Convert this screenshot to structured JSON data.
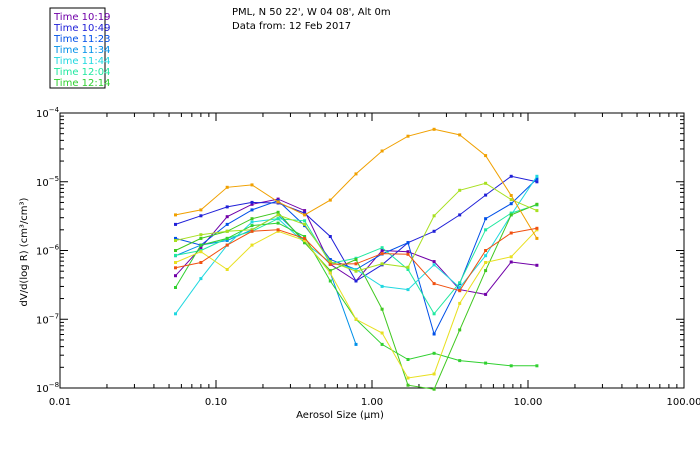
{
  "chart_data": {
    "type": "line",
    "header": {
      "title_line": "PML, N 50 22', W 04 08', Alt 0m",
      "date_line": "Data from: 12 Feb 2017"
    },
    "xlabel": "Aerosol Size (μm)",
    "ylabel": "dV/d(log R) (cm³/cm³)",
    "x_scale": "log",
    "y_scale": "log",
    "xlim": [
      0.01,
      100
    ],
    "ylim": [
      1e-08,
      0.0001
    ],
    "x_ticks": [
      {
        "value": 0.01,
        "label": "0.01"
      },
      {
        "value": 0.1,
        "label": "0.10"
      },
      {
        "value": 1,
        "label": "1.00"
      },
      {
        "value": 10,
        "label": "10.00"
      },
      {
        "value": 100,
        "label": "100.00"
      }
    ],
    "y_ticks": [
      {
        "value": 1e-08,
        "base": "10",
        "exp": "−8"
      },
      {
        "value": 1e-07,
        "base": "10",
        "exp": "−7"
      },
      {
        "value": 1e-06,
        "base": "10",
        "exp": "−6"
      },
      {
        "value": 1e-05,
        "base": "10",
        "exp": "−5"
      },
      {
        "value": 0.0001,
        "base": "10",
        "exp": "−4"
      }
    ],
    "x": [
      0.055,
      0.08,
      0.118,
      0.17,
      0.25,
      0.37,
      0.54,
      0.79,
      1.16,
      1.7,
      2.5,
      3.65,
      5.35,
      7.8,
      11.4
    ],
    "series": [
      {
        "name": "Time 10:19",
        "color": "#7000a8",
        "values": [
          4.3e-07,
          1.1e-06,
          3.1e-06,
          4.7e-06,
          5.6e-06,
          3.8e-06,
          6.3e-07,
          3.6e-07,
          1e-06,
          9.6e-07,
          6.9e-07,
          2.7e-07,
          2.3e-07,
          6.8e-07,
          6.1e-07
        ]
      },
      {
        "name": "Time 10:49",
        "color": "#2020d8",
        "values": [
          2.4e-06,
          3.2e-06,
          4.3e-06,
          5e-06,
          4.9e-06,
          3.5e-06,
          1.6e-06,
          3.6e-07,
          6.2e-07,
          1.3e-06,
          1.9e-06,
          3.3e-06,
          6.4e-06,
          1.2e-05,
          1e-05
        ]
      },
      {
        "name": "Time 11:23",
        "color": "#0050e8",
        "values": [
          1.5e-06,
          1.2e-06,
          2.4e-06,
          3.9e-06,
          5.3e-06,
          2.3e-06,
          7.4e-07,
          5.3e-07,
          8.9e-07,
          1.3e-06,
          6.1e-08,
          3.3e-07,
          2.9e-06,
          4.8e-06,
          1.1e-05
        ]
      },
      {
        "name": "Time 11:34",
        "color": "#0090e8",
        "values": [
          8.4e-07,
          1.2e-06,
          1.4e-06,
          2e-06,
          3.3e-06,
          1.4e-06,
          4.7e-07,
          4.3e-08,
          null,
          null,
          null,
          null,
          null,
          null,
          null
        ]
      },
      {
        "name": "Time 11:44",
        "color": "#20d8e0",
        "values": [
          1.2e-07,
          3.9e-07,
          1.2e-06,
          2.6e-06,
          2.9e-06,
          1.3e-06,
          6.7e-07,
          5.3e-07,
          3e-07,
          2.7e-07,
          6.2e-07,
          2.9e-07,
          8.4e-07,
          3.3e-06,
          1.2e-05
        ]
      },
      {
        "name": "Time 12:04",
        "color": "#20e8a0",
        "values": [
          8.5e-07,
          1e-06,
          1.5e-06,
          1.9e-06,
          2.9e-06,
          2.7e-06,
          6.5e-07,
          7.7e-07,
          1.1e-06,
          5.3e-07,
          1.2e-07,
          3.4e-07,
          2e-06,
          3.5e-06,
          4.6e-06
        ]
      },
      {
        "name": "Time 12:14",
        "color": "#30d030",
        "values": [
          2.9e-07,
          1.2e-06,
          1.5e-06,
          2.3e-06,
          2.5e-06,
          1.6e-06,
          3.6e-07,
          1e-07,
          4.3e-08,
          2.6e-08,
          3.2e-08,
          2.5e-08,
          2.3e-08,
          2.1e-08,
          2.1e-08
        ]
      },
      {
        "name": "",
        "color": "#40c820",
        "values": [
          1e-06,
          1.5e-06,
          1.9e-06,
          2.9e-06,
          3.6e-06,
          1.3e-06,
          5.1e-07,
          7.4e-07,
          1.4e-07,
          1.1e-08,
          9.6e-09,
          7e-08,
          5.1e-07,
          3.3e-06,
          4.7e-06
        ]
      },
      {
        "name": "",
        "color": "#a8e020",
        "values": [
          1.4e-06,
          1.7e-06,
          1.9e-06,
          2e-06,
          3.3e-06,
          2.4e-06,
          6.9e-07,
          5e-07,
          6.4e-07,
          5.7e-07,
          3.2e-06,
          7.5e-06,
          9.5e-06,
          5.5e-06,
          3.8e-06
        ]
      },
      {
        "name": "",
        "color": "#e8e020",
        "values": [
          6.7e-07,
          9.6e-07,
          5.3e-07,
          1.2e-06,
          1.9e-06,
          1.4e-06,
          4.7e-07,
          1e-07,
          6.3e-08,
          1.4e-08,
          1.6e-08,
          1.7e-07,
          6.7e-07,
          8.1e-07,
          2e-06
        ]
      },
      {
        "name": "",
        "color": "#f0a000",
        "values": [
          3.3e-06,
          3.9e-06,
          8.3e-06,
          9e-06,
          5.1e-06,
          3.3e-06,
          5.4e-06,
          1.3e-05,
          2.8e-05,
          4.6e-05,
          5.8e-05,
          4.8e-05,
          2.4e-05,
          6.3e-06,
          1.5e-06
        ]
      },
      {
        "name": "",
        "color": "#f05010",
        "values": [
          5.6e-07,
          6.7e-07,
          1.2e-06,
          1.9e-06,
          2e-06,
          1.5e-06,
          6.3e-07,
          6.4e-07,
          9e-07,
          8.8e-07,
          3.3e-07,
          2.6e-07,
          1e-06,
          1.8e-06,
          2.1e-06
        ]
      }
    ]
  }
}
